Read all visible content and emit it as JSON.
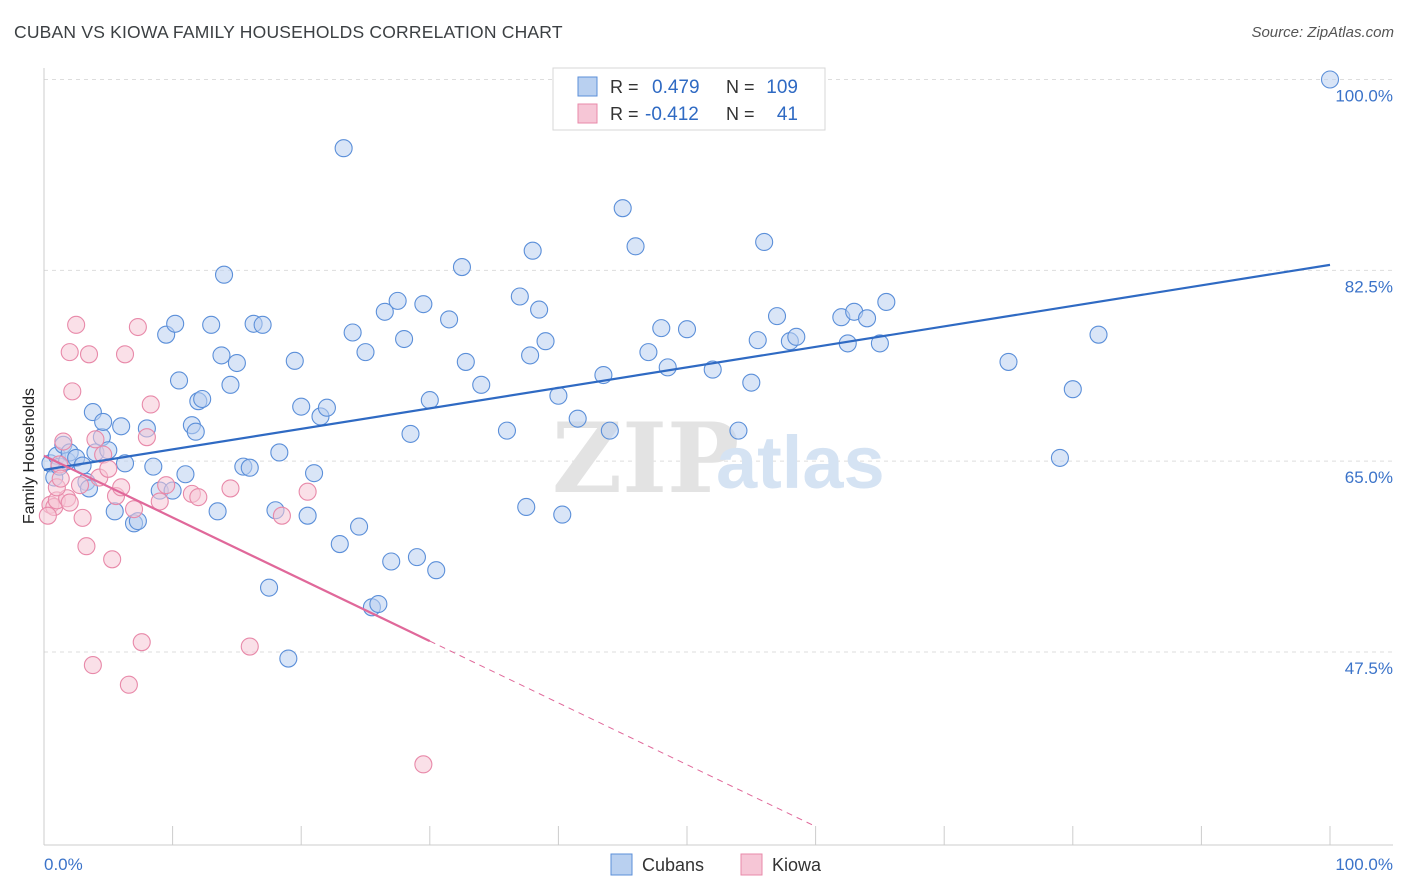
{
  "title": "CUBAN VS KIOWA FAMILY HOUSEHOLDS CORRELATION CHART",
  "source": "Source: ZipAtlas.com",
  "watermark": {
    "zip": "ZIP",
    "atlas": "atlas"
  },
  "colors": {
    "blue": "#5b8fd9",
    "blue_fill": "#b9d0f0",
    "blue_line": "#2f6ac3",
    "pink": "#e889a9",
    "pink_fill": "#f6c6d6",
    "pink_line": "#e0689a",
    "grid": "#dddddd",
    "tick_text": "#3b73c9"
  },
  "stats": {
    "cubans": {
      "r_label": "R =",
      "r_value": "0.479",
      "n_label": "N =",
      "n_value": "109"
    },
    "kiowa": {
      "r_label": "R =",
      "r_value": "-0.412",
      "n_label": "N =",
      "n_value": "41"
    }
  },
  "chart_data": {
    "type": "scatter",
    "title": "CUBAN VS KIOWA FAMILY HOUSEHOLDS CORRELATION CHART",
    "xlabel": "",
    "ylabel": "Family Households",
    "xlim": [
      0,
      100
    ],
    "ylim": [
      29.5,
      102
    ],
    "x_tick_labels": {
      "min": "0.0%",
      "max": "100.0%"
    },
    "y_ticks": [
      {
        "value": 100.0,
        "label": "100.0%"
      },
      {
        "value": 82.5,
        "label": "82.5%"
      },
      {
        "value": 65.0,
        "label": "65.0%"
      },
      {
        "value": 47.5,
        "label": "47.5%"
      }
    ],
    "legend": [
      "Cubans",
      "Kiowa"
    ],
    "series": [
      {
        "name": "Cubans",
        "trendline": {
          "x0": 0,
          "y0": 64.2,
          "x1": 100,
          "y1": 83.0
        },
        "points": [
          [
            0.5,
            64.8
          ],
          [
            0.8,
            63.5
          ],
          [
            1.0,
            65.5
          ],
          [
            1.2,
            64.5
          ],
          [
            1.5,
            66.5
          ],
          [
            1.8,
            65.0
          ],
          [
            2.0,
            65.8
          ],
          [
            2.5,
            65.3
          ],
          [
            3.0,
            64.6
          ],
          [
            3.3,
            63.1
          ],
          [
            3.5,
            62.5
          ],
          [
            3.8,
            69.5
          ],
          [
            4.0,
            65.8
          ],
          [
            4.5,
            67.2
          ],
          [
            4.6,
            68.6
          ],
          [
            5.0,
            66.0
          ],
          [
            5.5,
            60.4
          ],
          [
            6.0,
            68.2
          ],
          [
            6.3,
            64.8
          ],
          [
            7.0,
            59.3
          ],
          [
            7.3,
            59.5
          ],
          [
            8.0,
            68.0
          ],
          [
            8.5,
            64.5
          ],
          [
            9.0,
            62.3
          ],
          [
            9.5,
            76.6
          ],
          [
            10.0,
            62.3
          ],
          [
            10.2,
            77.6
          ],
          [
            10.5,
            72.4
          ],
          [
            11.0,
            63.8
          ],
          [
            11.5,
            68.3
          ],
          [
            11.8,
            67.7
          ],
          [
            12.0,
            70.5
          ],
          [
            12.3,
            70.7
          ],
          [
            13.0,
            77.5
          ],
          [
            13.5,
            60.4
          ],
          [
            13.8,
            74.7
          ],
          [
            14.0,
            82.1
          ],
          [
            14.5,
            72.0
          ],
          [
            15.0,
            74.0
          ],
          [
            15.5,
            64.5
          ],
          [
            16.0,
            64.4
          ],
          [
            16.3,
            77.6
          ],
          [
            17.0,
            77.5
          ],
          [
            17.5,
            53.4
          ],
          [
            18.0,
            60.5
          ],
          [
            18.3,
            65.8
          ],
          [
            19.0,
            46.9
          ],
          [
            19.5,
            74.2
          ],
          [
            20.0,
            70.0
          ],
          [
            20.5,
            60.0
          ],
          [
            21.0,
            63.9
          ],
          [
            21.5,
            69.1
          ],
          [
            22.0,
            69.9
          ],
          [
            23.0,
            57.4
          ],
          [
            23.3,
            93.7
          ],
          [
            24.0,
            76.8
          ],
          [
            24.5,
            59.0
          ],
          [
            25.0,
            75.0
          ],
          [
            25.5,
            51.6
          ],
          [
            26.0,
            51.9
          ],
          [
            26.5,
            78.7
          ],
          [
            27.0,
            55.8
          ],
          [
            27.5,
            79.7
          ],
          [
            28.0,
            76.2
          ],
          [
            28.5,
            67.5
          ],
          [
            29.0,
            56.2
          ],
          [
            29.5,
            79.4
          ],
          [
            30.0,
            70.6
          ],
          [
            30.5,
            55.0
          ],
          [
            31.5,
            78.0
          ],
          [
            32.5,
            82.8
          ],
          [
            32.8,
            74.1
          ],
          [
            34.0,
            72.0
          ],
          [
            36.0,
            67.8
          ],
          [
            37.0,
            80.1
          ],
          [
            37.5,
            60.8
          ],
          [
            37.8,
            74.7
          ],
          [
            38.0,
            84.3
          ],
          [
            38.5,
            78.9
          ],
          [
            39.0,
            76.0
          ],
          [
            40.0,
            71.0
          ],
          [
            40.3,
            60.1
          ],
          [
            41.5,
            68.9
          ],
          [
            43.5,
            72.9
          ],
          [
            44.0,
            67.8
          ],
          [
            45.0,
            88.2
          ],
          [
            46.0,
            84.7
          ],
          [
            47.0,
            75.0
          ],
          [
            48.0,
            77.2
          ],
          [
            48.5,
            73.6
          ],
          [
            50.0,
            77.1
          ],
          [
            52.0,
            73.4
          ],
          [
            54.0,
            67.8
          ],
          [
            55.0,
            72.2
          ],
          [
            55.5,
            76.1
          ],
          [
            56.0,
            85.1
          ],
          [
            57.0,
            78.3
          ],
          [
            58.0,
            76.0
          ],
          [
            58.5,
            76.4
          ],
          [
            62.0,
            78.2
          ],
          [
            62.5,
            75.8
          ],
          [
            63.0,
            78.7
          ],
          [
            64.0,
            78.1
          ],
          [
            65.0,
            75.8
          ],
          [
            65.5,
            79.6
          ],
          [
            75.0,
            74.1
          ],
          [
            79.0,
            65.3
          ],
          [
            80.0,
            71.6
          ],
          [
            82.0,
            76.6
          ],
          [
            100.0,
            100.0
          ]
        ]
      },
      {
        "name": "Kiowa",
        "trendline": {
          "x0": 0,
          "y0": 65.5,
          "x1": 30,
          "y1": 48.5,
          "dash_to_x": 60,
          "dash_to_y": 31.5
        },
        "points": [
          [
            0.5,
            61.0
          ],
          [
            0.8,
            60.8
          ],
          [
            1.0,
            61.4
          ],
          [
            1.2,
            64.7
          ],
          [
            1.5,
            66.8
          ],
          [
            1.8,
            61.6
          ],
          [
            2.0,
            75.0
          ],
          [
            2.2,
            71.4
          ],
          [
            2.5,
            77.5
          ],
          [
            2.8,
            62.8
          ],
          [
            3.0,
            59.8
          ],
          [
            3.3,
            57.2
          ],
          [
            3.5,
            74.8
          ],
          [
            3.8,
            46.3
          ],
          [
            4.0,
            67.0
          ],
          [
            4.3,
            63.5
          ],
          [
            4.6,
            65.6
          ],
          [
            5.0,
            64.3
          ],
          [
            5.3,
            56.0
          ],
          [
            5.6,
            61.8
          ],
          [
            6.0,
            62.6
          ],
          [
            6.3,
            74.8
          ],
          [
            6.6,
            44.5
          ],
          [
            7.0,
            60.6
          ],
          [
            7.3,
            77.3
          ],
          [
            7.6,
            48.4
          ],
          [
            8.0,
            67.2
          ],
          [
            8.3,
            70.2
          ],
          [
            9.0,
            61.3
          ],
          [
            9.5,
            62.8
          ],
          [
            11.5,
            62.0
          ],
          [
            12.0,
            61.7
          ],
          [
            14.5,
            62.5
          ],
          [
            16.0,
            48.0
          ],
          [
            18.5,
            60.0
          ],
          [
            20.5,
            62.2
          ],
          [
            29.5,
            37.2
          ],
          [
            0.3,
            60.0
          ],
          [
            1.0,
            62.6
          ],
          [
            1.3,
            63.4
          ],
          [
            2.0,
            61.2
          ]
        ]
      }
    ]
  }
}
